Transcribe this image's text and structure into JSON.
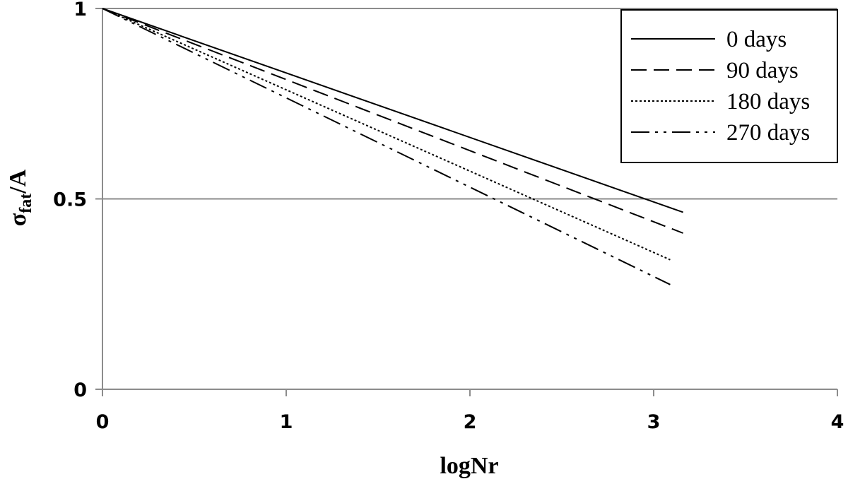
{
  "chart_data": {
    "type": "line",
    "xlabel": "logNr",
    "ylabel_main": "σ",
    "ylabel_sub": "fat",
    "ylabel_rest": "/A",
    "xlim": [
      0,
      4
    ],
    "ylim": [
      0,
      1
    ],
    "x_ticks": [
      "0",
      "1",
      "2",
      "3",
      "4"
    ],
    "y_ticks": [
      "0",
      "0.5",
      "1"
    ],
    "grid": "horizontal",
    "legend_position": "top-right",
    "series": [
      {
        "name": "0 days",
        "dash": "solid",
        "x": [
          0,
          3.16
        ],
        "y": [
          1,
          0.465
        ]
      },
      {
        "name": "90 days",
        "dash": "dashed",
        "x": [
          0,
          3.16
        ],
        "y": [
          1,
          0.41
        ]
      },
      {
        "name": "180 days",
        "dash": "dotted",
        "x": [
          0,
          3.09
        ],
        "y": [
          1,
          0.34
        ]
      },
      {
        "name": "270 days",
        "dash": "dash-dot",
        "x": [
          0,
          3.09
        ],
        "y": [
          1,
          0.275
        ]
      }
    ]
  }
}
